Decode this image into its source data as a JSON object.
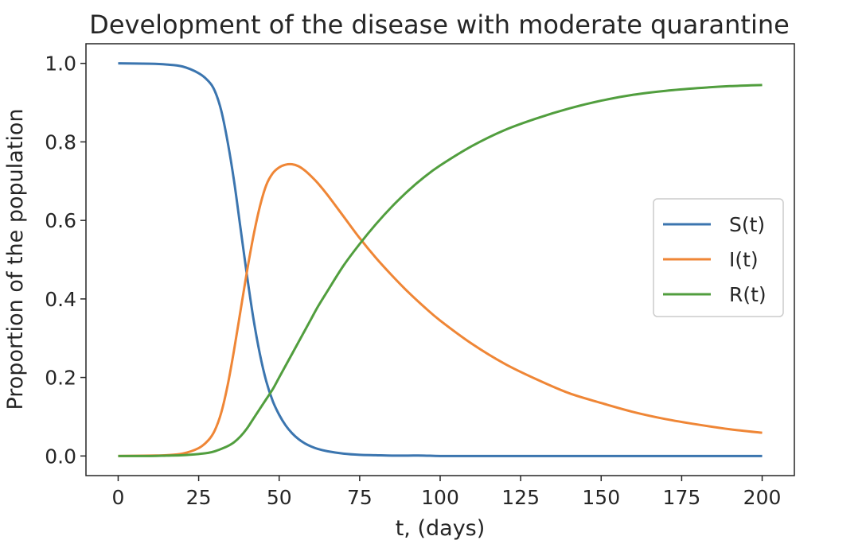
{
  "chart_data": {
    "type": "line",
    "title": "Development of the disease with moderate quarantine",
    "xlabel": "t, (days)",
    "ylabel": "Proportion of the population",
    "xlim": [
      -10,
      210
    ],
    "ylim": [
      -0.05,
      1.05
    ],
    "xticks": [
      0,
      25,
      50,
      75,
      100,
      125,
      150,
      175,
      200
    ],
    "yticks": [
      0.0,
      0.2,
      0.4,
      0.6,
      0.8,
      1.0
    ],
    "xtick_labels": [
      "0",
      "25",
      "50",
      "75",
      "100",
      "125",
      "150",
      "175",
      "200"
    ],
    "ytick_labels": [
      "0.0",
      "0.2",
      "0.4",
      "0.6",
      "0.8",
      "1.0"
    ],
    "grid": false,
    "legend_position": "center-right",
    "x": [
      0,
      10,
      15,
      20,
      25,
      28,
      30,
      32,
      34,
      36,
      38,
      40,
      42,
      44,
      46,
      48,
      50,
      52,
      54,
      56,
      58,
      60,
      62,
      65,
      70,
      75,
      80,
      85,
      90,
      95,
      100,
      110,
      120,
      130,
      140,
      150,
      160,
      170,
      180,
      190,
      200
    ],
    "series": [
      {
        "name": "S(t)",
        "color": "#3b75af",
        "values": [
          1.0,
          0.999,
          0.997,
          0.992,
          0.975,
          0.955,
          0.93,
          0.88,
          0.8,
          0.7,
          0.58,
          0.46,
          0.35,
          0.26,
          0.19,
          0.14,
          0.105,
          0.078,
          0.058,
          0.043,
          0.032,
          0.024,
          0.018,
          0.012,
          0.006,
          0.003,
          0.002,
          0.001,
          0.001,
          0.001,
          0.0,
          0.0,
          0.0,
          0.0,
          0.0,
          0.0,
          0.0,
          0.0,
          0.0,
          0.0,
          0.0
        ]
      },
      {
        "name": "I(t)",
        "color": "#ef8636",
        "values": [
          0.0,
          0.001,
          0.002,
          0.006,
          0.02,
          0.04,
          0.065,
          0.11,
          0.18,
          0.27,
          0.37,
          0.47,
          0.56,
          0.635,
          0.69,
          0.72,
          0.735,
          0.742,
          0.743,
          0.738,
          0.727,
          0.712,
          0.695,
          0.665,
          0.61,
          0.555,
          0.505,
          0.46,
          0.418,
          0.38,
          0.345,
          0.285,
          0.235,
          0.195,
          0.16,
          0.135,
          0.112,
          0.094,
          0.08,
          0.068,
          0.059
        ]
      },
      {
        "name": "R(t)",
        "color": "#519e3e",
        "values": [
          0.0,
          0.0,
          0.001,
          0.002,
          0.005,
          0.008,
          0.012,
          0.018,
          0.025,
          0.035,
          0.05,
          0.07,
          0.095,
          0.12,
          0.145,
          0.17,
          0.2,
          0.23,
          0.26,
          0.29,
          0.32,
          0.35,
          0.38,
          0.42,
          0.485,
          0.54,
          0.59,
          0.635,
          0.675,
          0.71,
          0.74,
          0.79,
          0.83,
          0.86,
          0.885,
          0.905,
          0.92,
          0.93,
          0.937,
          0.942,
          0.945
        ]
      }
    ]
  }
}
